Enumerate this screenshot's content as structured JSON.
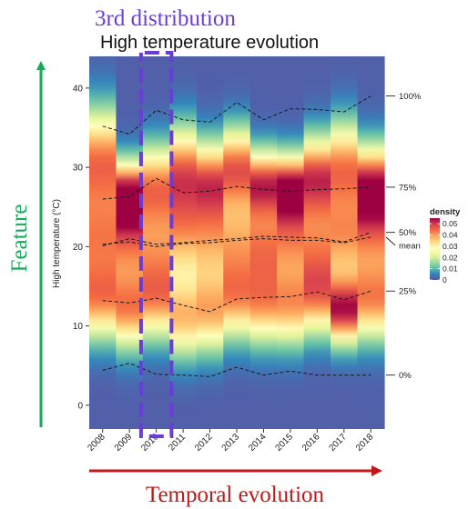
{
  "annotations": {
    "top_label": "3rd distribution",
    "left_label": "Feature",
    "bottom_label": "Temporal evolution",
    "highlight_color": "#6a3dd8",
    "feature_arrow_color": "#1aa95b",
    "temporal_arrow_color": "#c01818"
  },
  "chart_data": {
    "type": "heatmap",
    "title": "High temperature evolution",
    "xlabel": "",
    "ylabel": "High temperature (°C)",
    "categories": [
      "2008",
      "2009",
      "2010",
      "2011",
      "2012",
      "2013",
      "2014",
      "2015",
      "2016",
      "2017",
      "2018"
    ],
    "ylim": [
      -3,
      44
    ],
    "yticks": [
      0,
      10,
      20,
      30,
      40
    ],
    "highlighted_category": "2010",
    "legend": {
      "title": "density",
      "placement": "right",
      "range": [
        0,
        0.055
      ],
      "ticks": [
        0.05,
        0.04,
        0.03,
        0.02,
        0.01,
        0
      ],
      "tick_labels": [
        "0.05",
        "0.04",
        "0.03",
        "0.02",
        "0.01",
        "0"
      ],
      "colors": [
        "#5e4fa2",
        "#3288bd",
        "#66c2a5",
        "#abdda4",
        "#e6f598",
        "#ffffbf",
        "#fee08b",
        "#fdae61",
        "#f46d43",
        "#d53e4f",
        "#9e0142"
      ]
    },
    "series": [
      {
        "name": "100%",
        "values": [
          35.2,
          34.2,
          37.2,
          36.0,
          35.7,
          38.2,
          36.0,
          37.4,
          37.3,
          37.0,
          39.0
        ]
      },
      {
        "name": "75%",
        "values": [
          26.0,
          26.3,
          28.6,
          26.8,
          27.0,
          27.6,
          27.2,
          27.0,
          27.2,
          27.3,
          27.5
        ]
      },
      {
        "name": "50%",
        "values": [
          20.1,
          21.0,
          20.3,
          20.5,
          20.8,
          21.0,
          21.3,
          21.2,
          21.1,
          20.6,
          21.8
        ]
      },
      {
        "name": "mean",
        "values": [
          20.3,
          20.6,
          20.0,
          20.4,
          20.5,
          20.8,
          21.0,
          20.8,
          20.8,
          20.5,
          21.2
        ]
      },
      {
        "name": "25%",
        "values": [
          13.2,
          12.9,
          13.5,
          12.6,
          11.8,
          13.4,
          13.6,
          13.7,
          14.3,
          13.3,
          14.4
        ]
      },
      {
        "name": "0%",
        "values": [
          4.4,
          5.3,
          3.9,
          3.8,
          3.6,
          4.8,
          3.8,
          4.3,
          3.8,
          3.8,
          3.8
        ]
      }
    ],
    "density_modes": [
      {
        "center": [
          31.0,
          26.5,
          28.0,
          29.5,
          28.5,
          30.0,
          28.0,
          27.5,
          29.0,
          30.0,
          28.0
        ],
        "width": [
          4.5,
          3.0,
          3.5,
          4.0,
          3.5,
          3.5,
          3.0,
          3.0,
          3.5,
          4.0,
          3.5
        ],
        "peak": [
          0.04,
          0.052,
          0.036,
          0.04,
          0.04,
          0.042,
          0.046,
          0.05,
          0.044,
          0.04,
          0.042
        ]
      },
      {
        "center": [
          21.0,
          20.5,
          20.0,
          21.5,
          21.0,
          20.5,
          20.0,
          21.0,
          20.5,
          21.0,
          22.0
        ],
        "width": [
          4.5,
          4.0,
          4.5,
          4.5,
          4.5,
          4.5,
          4.0,
          4.0,
          4.5,
          4.0,
          4.5
        ],
        "peak": [
          0.036,
          0.036,
          0.032,
          0.034,
          0.034,
          0.034,
          0.038,
          0.036,
          0.034,
          0.036,
          0.036
        ]
      },
      {
        "center": [
          13.0,
          12.0,
          13.0,
          11.0,
          11.5,
          13.0,
          12.5,
          12.5,
          13.5,
          12.0,
          13.0
        ],
        "width": [
          3.5,
          3.5,
          3.5,
          3.5,
          3.5,
          3.5,
          3.5,
          3.5,
          3.5,
          3.0,
          3.5
        ],
        "peak": [
          0.034,
          0.038,
          0.032,
          0.034,
          0.034,
          0.032,
          0.034,
          0.036,
          0.034,
          0.05,
          0.036
        ]
      }
    ]
  }
}
